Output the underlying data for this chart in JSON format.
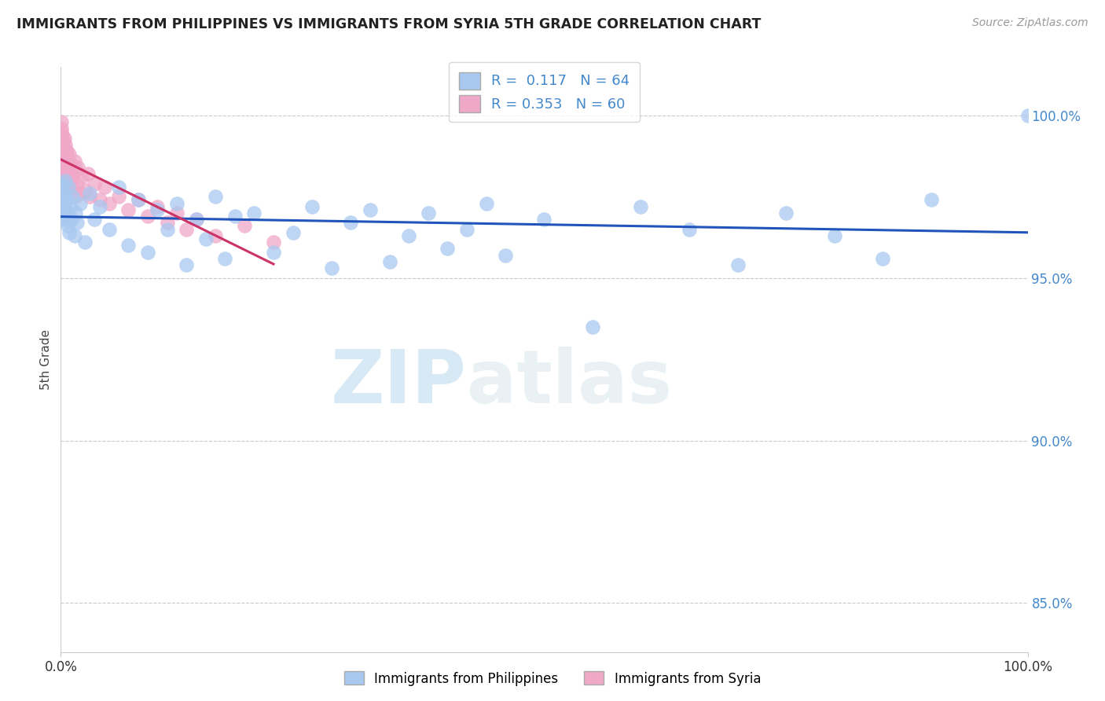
{
  "title": "IMMIGRANTS FROM PHILIPPINES VS IMMIGRANTS FROM SYRIA 5TH GRADE CORRELATION CHART",
  "source_text": "Source: ZipAtlas.com",
  "ylabel": "5th Grade",
  "legend_label1": "Immigrants from Philippines",
  "legend_label2": "Immigrants from Syria",
  "R1": 0.117,
  "N1": 64,
  "R2": 0.353,
  "N2": 60,
  "color1": "#a8c8f0",
  "color2": "#f0a8c8",
  "trend_color1": "#2255bb",
  "trend_color2": "#cc3366",
  "tick_color": "#4488cc",
  "xlim": [
    0.0,
    100.0
  ],
  "ylim": [
    83.5,
    101.5
  ],
  "yticks": [
    85.0,
    90.0,
    95.0,
    100.0
  ],
  "grid_color": "#bbbbbb",
  "background_color": "#ffffff",
  "watermark_color": "#cce5f5",
  "philippines_x": [
    0.1,
    0.15,
    0.2,
    0.25,
    0.3,
    0.35,
    0.4,
    0.45,
    0.5,
    0.55,
    0.6,
    0.65,
    0.7,
    0.8,
    0.9,
    1.0,
    1.1,
    1.2,
    1.4,
    1.5,
    1.7,
    2.0,
    2.5,
    3.0,
    3.5,
    4.0,
    5.0,
    6.0,
    7.0,
    8.0,
    9.0,
    10.0,
    11.0,
    12.0,
    13.0,
    14.0,
    15.0,
    16.0,
    17.0,
    18.0,
    20.0,
    22.0,
    24.0,
    26.0,
    28.0,
    30.0,
    32.0,
    34.0,
    36.0,
    38.0,
    40.0,
    42.0,
    44.0,
    46.0,
    50.0,
    55.0,
    60.0,
    65.0,
    70.0,
    75.0,
    80.0,
    85.0,
    90.0,
    100.0
  ],
  "philippines_y": [
    97.8,
    97.5,
    97.2,
    97.9,
    96.8,
    97.6,
    97.3,
    98.0,
    97.1,
    96.9,
    97.4,
    97.0,
    96.6,
    97.8,
    96.4,
    97.2,
    96.8,
    97.5,
    96.3,
    97.0,
    96.7,
    97.3,
    96.1,
    97.6,
    96.8,
    97.2,
    96.5,
    97.8,
    96.0,
    97.4,
    95.8,
    97.1,
    96.5,
    97.3,
    95.4,
    96.8,
    96.2,
    97.5,
    95.6,
    96.9,
    97.0,
    95.8,
    96.4,
    97.2,
    95.3,
    96.7,
    97.1,
    95.5,
    96.3,
    97.0,
    95.9,
    96.5,
    97.3,
    95.7,
    96.8,
    93.5,
    97.2,
    96.5,
    95.4,
    97.0,
    96.3,
    95.6,
    97.4,
    100.0
  ],
  "syria_x": [
    0.02,
    0.04,
    0.06,
    0.08,
    0.1,
    0.12,
    0.15,
    0.17,
    0.2,
    0.22,
    0.25,
    0.28,
    0.3,
    0.33,
    0.35,
    0.38,
    0.4,
    0.43,
    0.45,
    0.48,
    0.5,
    0.55,
    0.6,
    0.65,
    0.7,
    0.75,
    0.8,
    0.85,
    0.9,
    0.95,
    1.0,
    1.1,
    1.2,
    1.3,
    1.4,
    1.5,
    1.6,
    1.7,
    1.8,
    2.0,
    2.2,
    2.5,
    2.8,
    3.0,
    3.5,
    4.0,
    4.5,
    5.0,
    6.0,
    7.0,
    8.0,
    9.0,
    10.0,
    11.0,
    12.0,
    13.0,
    14.0,
    16.0,
    19.0,
    22.0
  ],
  "syria_y": [
    99.5,
    99.8,
    99.2,
    99.6,
    99.0,
    99.4,
    98.8,
    99.3,
    98.5,
    99.1,
    98.7,
    99.2,
    98.4,
    99.0,
    98.6,
    99.3,
    98.2,
    98.9,
    98.5,
    99.1,
    98.3,
    98.7,
    98.4,
    98.9,
    98.1,
    98.6,
    98.3,
    98.8,
    97.9,
    98.4,
    98.0,
    98.5,
    97.8,
    98.2,
    98.6,
    97.5,
    98.3,
    97.9,
    98.4,
    97.6,
    98.1,
    97.7,
    98.2,
    97.5,
    97.9,
    97.4,
    97.8,
    97.3,
    97.5,
    97.1,
    97.4,
    96.9,
    97.2,
    96.7,
    97.0,
    96.5,
    96.8,
    96.3,
    96.6,
    96.1
  ]
}
